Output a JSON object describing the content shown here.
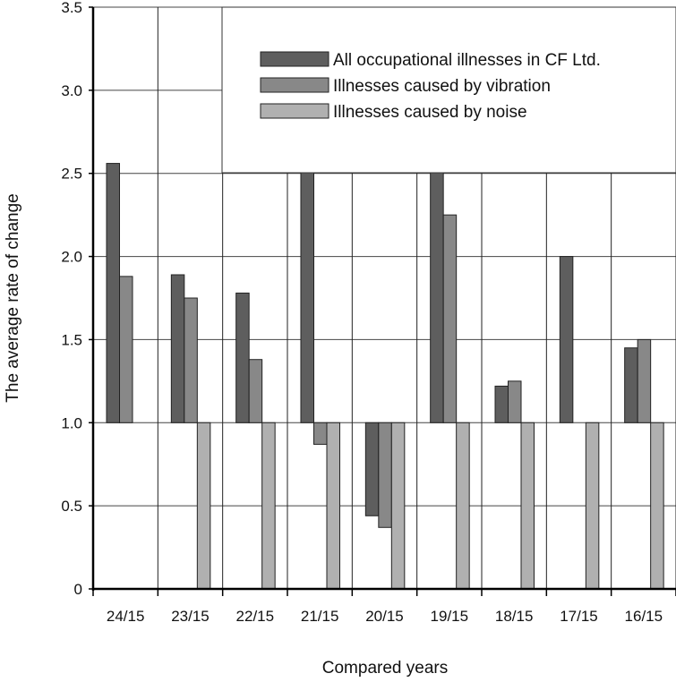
{
  "chart_data": {
    "type": "bar",
    "title": "",
    "xlabel": "Compared years",
    "ylabel": "The average rate of change",
    "ylim": [
      0,
      3.5
    ],
    "baseline": 1.0,
    "yticks": [
      "0",
      "0.5",
      "1.0",
      "1.5",
      "2.0",
      "2.5",
      "3.0",
      "3.5"
    ],
    "ytick_values": [
      0,
      0.5,
      1.0,
      1.5,
      2.0,
      2.5,
      3.0,
      3.5
    ],
    "grid": true,
    "legend_position": "top-right",
    "categories": [
      "24/15",
      "23/15",
      "22/15",
      "21/15",
      "20/15",
      "19/15",
      "18/15",
      "17/15",
      "16/15"
    ],
    "series": [
      {
        "name": "All occupational illnesses in CF Ltd.",
        "color": "#5e5e5e",
        "values": [
          2.56,
          1.89,
          1.78,
          2.56,
          0.44,
          2.56,
          1.22,
          2.0,
          1.45
        ]
      },
      {
        "name": "Illnesses caused by vibration",
        "color": "#888888",
        "values": [
          1.88,
          1.75,
          1.38,
          0.87,
          0.37,
          2.25,
          1.25,
          null,
          1.5
        ]
      },
      {
        "name": "Illnesses caused by noise",
        "color": "#b0b0b0",
        "values": [
          null,
          0,
          0,
          0,
          0,
          0,
          0,
          0,
          0
        ]
      }
    ]
  }
}
